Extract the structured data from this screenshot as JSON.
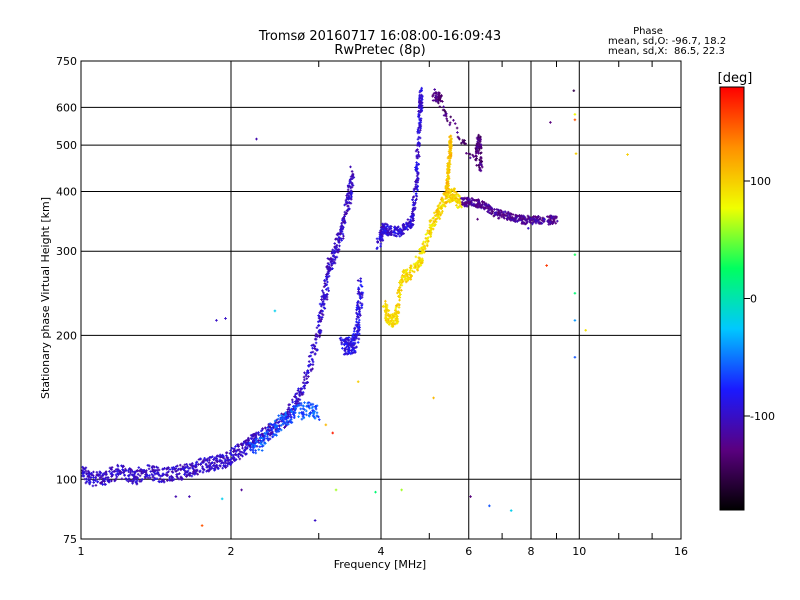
{
  "chart_data": {
    "type": "scatter",
    "title": "Tromsø 20160717 16:08:00-16:09:43",
    "subtitle": "RwPretec (8p)",
    "xlabel": "Frequency [MHz]",
    "ylabel": "Stationary phase Virtual Height [km]",
    "x_scale": "log",
    "y_scale": "log",
    "xlim": [
      1,
      16
    ],
    "ylim": [
      75,
      750
    ],
    "x_ticks": [
      1,
      2,
      4,
      6,
      8,
      10,
      16
    ],
    "y_ticks": [
      75,
      100,
      200,
      300,
      400,
      500,
      600,
      750
    ],
    "grid": true,
    "stats": {
      "heading": "Phase",
      "line_o": "mean, sd,O: -96.7, 18.2",
      "line_x": "mean, sd,X:  86.5, 22.3"
    },
    "colorbar": {
      "label": "[deg]",
      "range": [
        -180,
        180
      ],
      "ticks": [
        -100,
        0,
        100
      ],
      "colors": [
        "#000000",
        "#5a0080",
        "#1a1aff",
        "#00c8ff",
        "#00ff60",
        "#f0ff00",
        "#ff9000",
        "#ff0000"
      ]
    },
    "tracks": [
      {
        "name": "",
        "phase": -100,
        "points": [
          [
            1.0,
            103
          ],
          [
            1.06,
            100
          ],
          [
            1.12,
            101
          ],
          [
            1.2,
            104
          ],
          [
            1.28,
            101
          ],
          [
            1.36,
            104
          ],
          [
            1.45,
            102
          ],
          [
            1.55,
            103
          ],
          [
            1.65,
            104
          ],
          [
            1.75,
            107
          ],
          [
            1.85,
            108
          ],
          [
            1.95,
            110
          ],
          [
            2.05,
            113
          ],
          [
            2.15,
            118
          ],
          [
            2.25,
            121
          ],
          [
            2.4,
            126
          ],
          [
            2.55,
            133
          ],
          [
            2.7,
            145
          ],
          [
            2.85,
            165
          ],
          [
            3.0,
            205
          ],
          [
            3.08,
            240
          ],
          [
            3.15,
            280
          ],
          [
            3.25,
            300
          ],
          [
            3.35,
            340
          ],
          [
            3.45,
            385
          ],
          [
            3.5,
            440
          ]
        ],
        "spread": 0.035
      },
      {
        "name": "",
        "phase": -90,
        "points": [
          [
            3.35,
            190
          ],
          [
            3.45,
            190
          ],
          [
            3.55,
            192
          ],
          [
            3.6,
            220
          ],
          [
            3.65,
            260
          ]
        ],
        "spread": 0.04
      },
      {
        "name": "",
        "phase": -95,
        "points": [
          [
            3.95,
            310
          ],
          [
            4.05,
            335
          ],
          [
            4.2,
            330
          ],
          [
            4.4,
            330
          ],
          [
            4.6,
            345
          ],
          [
            4.7,
            400
          ],
          [
            4.75,
            500
          ],
          [
            4.8,
            600
          ],
          [
            4.82,
            650
          ]
        ],
        "spread": 0.025
      },
      {
        "name": "",
        "phase": -60,
        "points": [
          [
            2.2,
            115
          ],
          [
            2.4,
            125
          ],
          [
            2.6,
            135
          ],
          [
            2.8,
            140
          ],
          [
            3.0,
            138
          ]
        ],
        "spread": 0.04
      },
      {
        "name": "",
        "phase": 95,
        "points": [
          [
            4.05,
            230
          ],
          [
            4.15,
            215
          ],
          [
            4.3,
            215
          ],
          [
            4.4,
            265
          ],
          [
            4.6,
            270
          ],
          [
            4.8,
            290
          ],
          [
            5.0,
            330
          ],
          [
            5.2,
            360
          ],
          [
            5.4,
            390
          ],
          [
            5.6,
            395
          ],
          [
            5.8,
            375
          ]
        ],
        "spread": 0.03
      },
      {
        "name": "",
        "phase": 105,
        "points": [
          [
            5.4,
            380
          ],
          [
            5.45,
            430
          ],
          [
            5.5,
            480
          ],
          [
            5.52,
            520
          ]
        ],
        "spread": 0.02
      },
      {
        "name": "",
        "phase": -120,
        "points": [
          [
            5.8,
            380
          ],
          [
            6.1,
            380
          ],
          [
            6.4,
            375
          ],
          [
            6.8,
            360
          ],
          [
            7.2,
            355
          ],
          [
            7.6,
            350
          ],
          [
            8.0,
            348
          ],
          [
            8.6,
            348
          ],
          [
            9.0,
            350
          ]
        ],
        "spread": 0.02
      },
      {
        "name": "",
        "phase": -130,
        "points": [
          [
            6.2,
            480
          ],
          [
            6.3,
            520
          ],
          [
            6.35,
            440
          ],
          [
            5.1,
            640
          ],
          [
            5.3,
            620
          ]
        ],
        "spread": 0.025
      }
    ],
    "scatter": [
      {
        "x": 1.87,
        "y": 215,
        "phase": -100
      },
      {
        "x": 1.95,
        "y": 217,
        "phase": -100
      },
      {
        "x": 2.25,
        "y": 515,
        "phase": -110
      },
      {
        "x": 2.45,
        "y": 225,
        "phase": -20
      },
      {
        "x": 2.95,
        "y": 82,
        "phase": -100
      },
      {
        "x": 1.55,
        "y": 92,
        "phase": -110
      },
      {
        "x": 1.65,
        "y": 92,
        "phase": -110
      },
      {
        "x": 1.75,
        "y": 80,
        "phase": 150
      },
      {
        "x": 1.92,
        "y": 91,
        "phase": -20
      },
      {
        "x": 2.1,
        "y": 95,
        "phase": -120
      },
      {
        "x": 3.25,
        "y": 95,
        "phase": 60
      },
      {
        "x": 3.9,
        "y": 94,
        "phase": 20
      },
      {
        "x": 4.4,
        "y": 95,
        "phase": 60
      },
      {
        "x": 5.1,
        "y": 148,
        "phase": 110
      },
      {
        "x": 3.6,
        "y": 160,
        "phase": 100
      },
      {
        "x": 3.2,
        "y": 125,
        "phase": 170
      },
      {
        "x": 3.1,
        "y": 130,
        "phase": 110
      },
      {
        "x": 6.05,
        "y": 92,
        "phase": -130
      },
      {
        "x": 6.6,
        "y": 88,
        "phase": -60
      },
      {
        "x": 7.3,
        "y": 86,
        "phase": -20
      },
      {
        "x": 8.75,
        "y": 558,
        "phase": -130
      },
      {
        "x": 9.75,
        "y": 650,
        "phase": -150
      },
      {
        "x": 9.8,
        "y": 580,
        "phase": 80
      },
      {
        "x": 9.8,
        "y": 565,
        "phase": 150
      },
      {
        "x": 9.85,
        "y": 480,
        "phase": 100
      },
      {
        "x": 9.8,
        "y": 295,
        "phase": 30
      },
      {
        "x": 9.8,
        "y": 245,
        "phase": 20
      },
      {
        "x": 9.8,
        "y": 215,
        "phase": -40
      },
      {
        "x": 9.8,
        "y": 180,
        "phase": -60
      },
      {
        "x": 10.3,
        "y": 205,
        "phase": 90
      },
      {
        "x": 12.5,
        "y": 478,
        "phase": 100
      },
      {
        "x": 8.6,
        "y": 280,
        "phase": 160
      },
      {
        "x": 6.25,
        "y": 350,
        "phase": -130
      },
      {
        "x": 7.9,
        "y": 335,
        "phase": -100
      },
      {
        "x": 8.5,
        "y": 350,
        "phase": -90
      }
    ]
  }
}
